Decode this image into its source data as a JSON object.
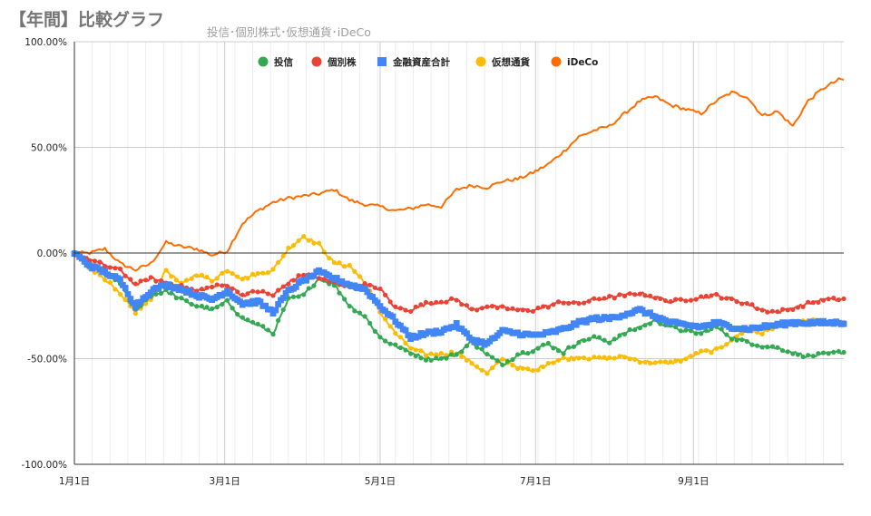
{
  "chart_data": {
    "type": "line",
    "title": "【年間】比較グラフ",
    "subtitle": "投信･個別株式･仮想通貨･iDeCo",
    "xlabel": "",
    "ylabel": "",
    "x_ticks": [
      "1月1日",
      "3月1日",
      "5月1日",
      "7月1日",
      "9月1日"
    ],
    "x_tick_days": [
      0,
      59,
      120,
      181,
      243
    ],
    "x_range_days": [
      0,
      302
    ],
    "y_ticks": [
      "100.00%",
      "50.00%",
      "0.00%",
      "-50.00%",
      "-100.00%"
    ],
    "ylim": [
      -100,
      100
    ],
    "grid": true,
    "legend_position": "top",
    "x_knots_days": [
      0,
      6,
      12,
      18,
      24,
      30,
      36,
      42,
      48,
      54,
      60,
      66,
      72,
      78,
      84,
      90,
      96,
      102,
      108,
      114,
      120,
      126,
      132,
      138,
      144,
      150,
      156,
      162,
      168,
      174,
      180,
      186,
      192,
      198,
      204,
      210,
      216,
      222,
      228,
      234,
      240,
      246,
      252,
      258,
      264,
      270,
      276,
      282,
      288,
      294,
      300
    ],
    "series": [
      {
        "name": "投信",
        "color": "#34a853",
        "marker": "circle",
        "values": [
          0,
          -5,
          -10,
          -14,
          -27,
          -20,
          -18,
          -22,
          -25,
          -27,
          -23,
          -31,
          -34,
          -38,
          -22,
          -20,
          -12,
          -15,
          -25,
          -30,
          -40,
          -44,
          -47,
          -50,
          -50,
          -48,
          -42,
          -48,
          -53,
          -48,
          -46,
          -43,
          -47,
          -42,
          -40,
          -42,
          -38,
          -35,
          -32,
          -35,
          -37,
          -38,
          -35,
          -40,
          -42,
          -44,
          -45,
          -47,
          -49,
          -48,
          -47
        ]
      },
      {
        "name": "個別株",
        "color": "#ea4335",
        "marker": "circle",
        "values": [
          0,
          -3,
          -6,
          -8,
          -15,
          -12,
          -14,
          -16,
          -18,
          -16,
          -15,
          -20,
          -18,
          -20,
          -14,
          -10,
          -12,
          -14,
          -16,
          -15,
          -17,
          -26,
          -27,
          -24,
          -23,
          -22,
          -27,
          -25,
          -26,
          -27,
          -27,
          -25,
          -23,
          -24,
          -22,
          -21,
          -20,
          -19,
          -21,
          -23,
          -22,
          -21,
          -20,
          -22,
          -24,
          -27,
          -28,
          -26,
          -24,
          -22,
          -22
        ]
      },
      {
        "name": "金融資産合計",
        "color": "#4285f4",
        "marker": "square",
        "values": [
          0,
          -6,
          -9,
          -13,
          -25,
          -18,
          -15,
          -17,
          -20,
          -22,
          -18,
          -24,
          -23,
          -28,
          -18,
          -13,
          -9,
          -12,
          -15,
          -17,
          -25,
          -32,
          -40,
          -38,
          -37,
          -34,
          -41,
          -43,
          -37,
          -38,
          -39,
          -38,
          -36,
          -33,
          -31,
          -31,
          -29,
          -27,
          -30,
          -33,
          -34,
          -35,
          -33,
          -35,
          -36,
          -35,
          -34,
          -33,
          -33,
          -33,
          -33
        ]
      },
      {
        "name": "仮想通貨",
        "color": "#fbbc04",
        "marker": "circle",
        "values": [
          0,
          -7,
          -12,
          -20,
          -28,
          -22,
          -8,
          -15,
          -10,
          -13,
          -8,
          -12,
          -10,
          -8,
          2,
          8,
          4,
          -5,
          -6,
          -14,
          -28,
          -38,
          -45,
          -48,
          -48,
          -47,
          -52,
          -57,
          -50,
          -54,
          -56,
          -52,
          -50,
          -49,
          -50,
          -50,
          -49,
          -51,
          -52,
          -52,
          -50,
          -47,
          -46,
          -41,
          -36,
          -38,
          -34,
          -33,
          -32,
          -33,
          -33
        ]
      },
      {
        "name": "iDeCo",
        "color": "#ff6d01",
        "marker": "none",
        "values": [
          0,
          0,
          2,
          -5,
          -8,
          -5,
          5,
          3,
          2,
          -1,
          1,
          14,
          20,
          24,
          26,
          27,
          28,
          30,
          25,
          23,
          22,
          20,
          21,
          23,
          22,
          30,
          32,
          31,
          34,
          35,
          38,
          42,
          48,
          55,
          58,
          60,
          66,
          72,
          74,
          70,
          68,
          66,
          72,
          76,
          74,
          65,
          67,
          60,
          72,
          78,
          82
        ]
      }
    ]
  }
}
